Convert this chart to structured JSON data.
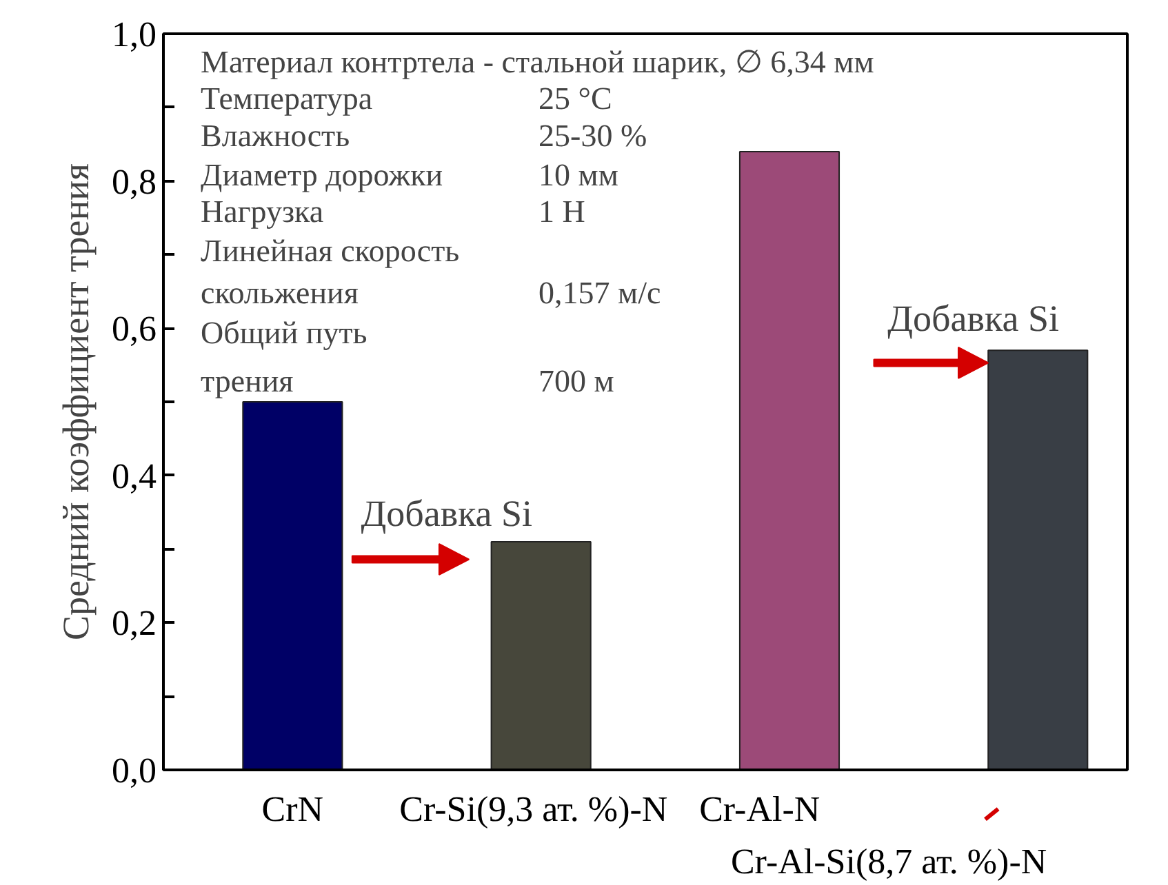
{
  "chart_data": {
    "type": "bar",
    "ylabel": "Средний коэффициент трения",
    "categories": [
      "CrN",
      "Cr-Si(9,3 ат. %)-N",
      "Cr-Al-N",
      "Cr-Al-Si(8,7 ат. %)-N"
    ],
    "values": [
      0.5,
      0.31,
      0.84,
      0.57
    ],
    "colors": [
      "#000066",
      "#47473b",
      "#9c4a78",
      "#393e45"
    ],
    "ylim": [
      0,
      1.0
    ],
    "yticks": [
      {
        "value": 0,
        "label": "0,0"
      },
      {
        "value": 0.1,
        "label": null
      },
      {
        "value": 0.2,
        "label": "0,2"
      },
      {
        "value": 0.3,
        "label": null
      },
      {
        "value": 0.4,
        "label": "0,4"
      },
      {
        "value": 0.5,
        "label": null
      },
      {
        "value": 0.6,
        "label": "0,6"
      },
      {
        "value": 0.7,
        "label": null
      },
      {
        "value": 0.8,
        "label": "0,8"
      },
      {
        "value": 0.9,
        "label": null
      },
      {
        "value": 1.0,
        "label": "1,0"
      }
    ],
    "annotations": [
      "Материал контртела  - стальной шарик, ∅ 6,34 мм",
      "Температура",
      "25 °C",
      "Влажность",
      "25-30 %",
      "Диаметр дорожки",
      "10 мм",
      "Нагрузка",
      "1 Н",
      "Линейная скорость",
      "скольжения",
      "0,157 м/с",
      "Общий путь",
      "трения",
      "700 м",
      "Добавка Si",
      "Добавка Si"
    ]
  }
}
